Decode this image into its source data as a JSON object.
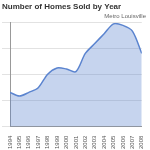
{
  "chart_data": {
    "type": "area",
    "title": "Number of Homes Sold by Year",
    "subtitle": "Metro Louisville",
    "categories": [
      "1994",
      "1995",
      "1996",
      "1997",
      "1998",
      "1999",
      "2000",
      "2001",
      "2002",
      "2003",
      "2004",
      "2005",
      "2006",
      "2007",
      "2008"
    ],
    "values": [
      6600,
      5900,
      6600,
      7500,
      10100,
      11300,
      11100,
      10600,
      14100,
      16000,
      17900,
      19800,
      19500,
      18400,
      14100
    ],
    "color": "#5b84cf",
    "ylim": [
      0,
      20000
    ],
    "yticks": [
      0,
      5000,
      10000,
      15000,
      20000
    ],
    "grid": true,
    "tick_labels": "x"
  }
}
